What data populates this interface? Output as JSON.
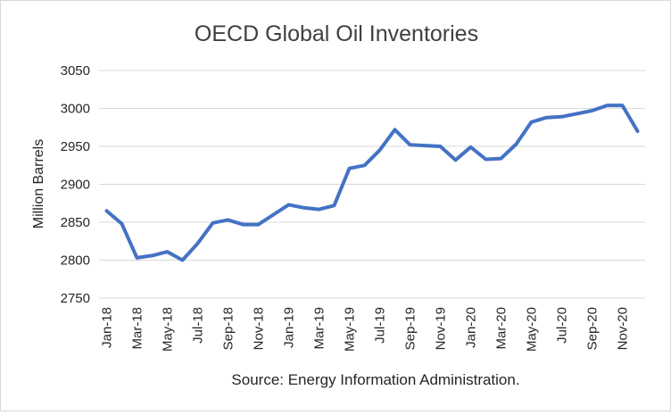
{
  "chart_data": {
    "type": "line",
    "title": "OECD Global Oil Inventories",
    "ylabel": "Million Barrels",
    "xlabel": "",
    "source": "Source: Energy Information Administration.",
    "ylim": [
      2750,
      3050
    ],
    "y_ticks": [
      2750,
      2800,
      2850,
      2900,
      2950,
      3000,
      3050
    ],
    "grid": true,
    "legend": "none",
    "line_color": "#4472c4",
    "x_tick_labels": [
      "Jan-18",
      "Mar-18",
      "May-18",
      "Jul-18",
      "Sep-18",
      "Nov-18",
      "Jan-19",
      "Mar-19",
      "May-19",
      "Jul-19",
      "Sep-19",
      "Nov-19",
      "Jan-20",
      "Mar-20",
      "May-20",
      "Jul-20",
      "Sep-20",
      "Nov-20"
    ],
    "x": [
      "Jan-18",
      "Feb-18",
      "Mar-18",
      "Apr-18",
      "May-18",
      "Jun-18",
      "Jul-18",
      "Aug-18",
      "Sep-18",
      "Oct-18",
      "Nov-18",
      "Dec-18",
      "Jan-19",
      "Feb-19",
      "Mar-19",
      "Apr-19",
      "May-19",
      "Jun-19",
      "Jul-19",
      "Aug-19",
      "Sep-19",
      "Oct-19",
      "Nov-19",
      "Dec-19",
      "Jan-20",
      "Feb-20",
      "Mar-20",
      "Apr-20",
      "May-20",
      "Jun-20",
      "Jul-20",
      "Aug-20",
      "Sep-20",
      "Oct-20",
      "Nov-20",
      "Dec-20"
    ],
    "values": [
      2865,
      2848,
      2803,
      2806,
      2811,
      2800,
      2822,
      2849,
      2853,
      2847,
      2847,
      2860,
      2873,
      2869,
      2867,
      2872,
      2921,
      2925,
      2945,
      2972,
      2952,
      2951,
      2950,
      2932,
      2949,
      2933,
      2934,
      2953,
      2982,
      2988,
      2989,
      2993,
      2997,
      3004,
      3004,
      2970
    ]
  }
}
